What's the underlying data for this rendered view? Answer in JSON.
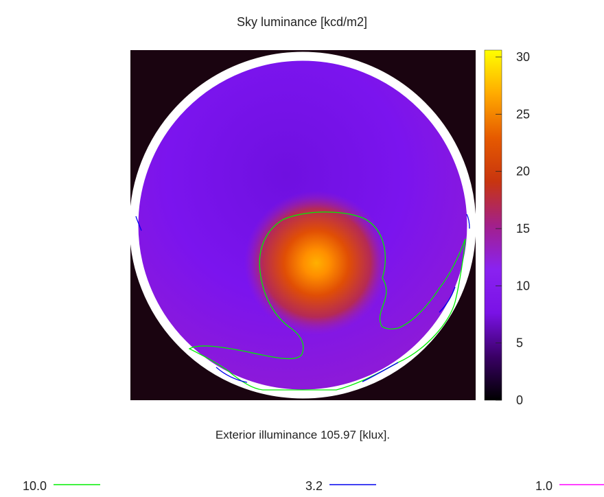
{
  "chart_data": {
    "type": "heatmap",
    "title": "Sky luminance [kcd/m2]",
    "subtitle": "Exterior illuminance 105.97 [klux].",
    "colorbar": {
      "range": [
        0,
        30
      ],
      "ticks": [
        "0",
        "5",
        "10",
        "15",
        "20",
        "25",
        "30"
      ],
      "palette": [
        "#000000",
        "#3a0066",
        "#7a12e6",
        "#8a22f0",
        "#a3208a",
        "#c8350f",
        "#e65a00",
        "#ffaa00",
        "#ffff00"
      ]
    },
    "sun": {
      "peak_luminance": 22,
      "background_luminance": 9
    },
    "contours": [
      {
        "label": "10.0",
        "color": "#00ee00"
      },
      {
        "label": "3.2",
        "color": "#0000ee"
      },
      {
        "label": "1.0",
        "color": "#ff00ff"
      }
    ]
  }
}
